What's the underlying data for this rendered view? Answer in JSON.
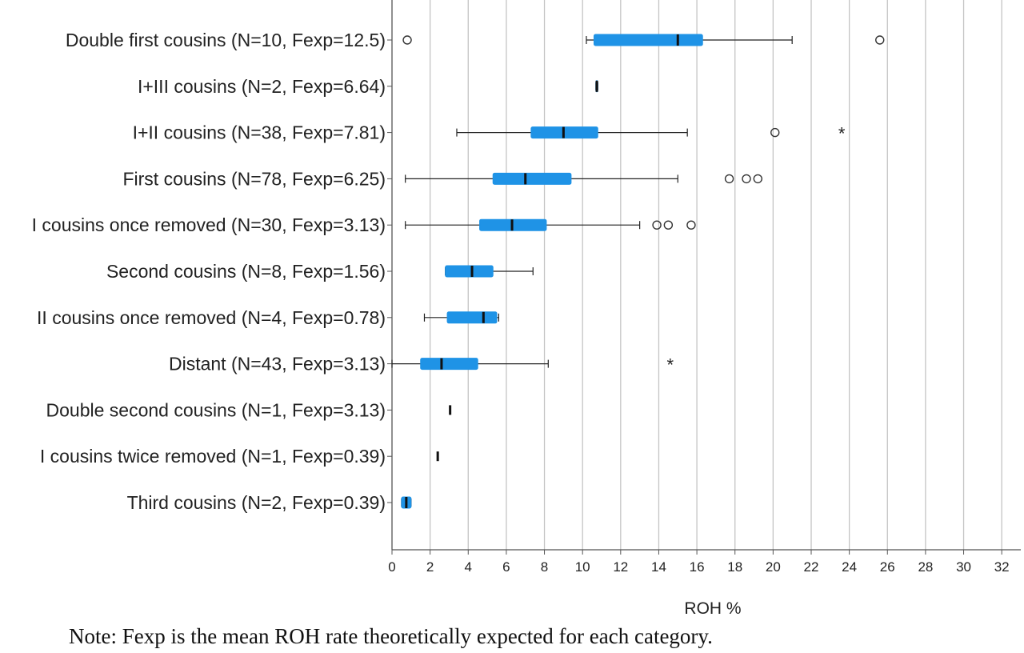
{
  "chart_data": {
    "type": "boxplot",
    "orientation": "horizontal",
    "xlabel": "ROH %",
    "xlim": [
      0,
      33
    ],
    "xticks": [
      0,
      2,
      4,
      6,
      8,
      10,
      12,
      14,
      16,
      18,
      20,
      22,
      24,
      26,
      28,
      30,
      32
    ],
    "grid": "vertical",
    "box_color": "#1f93e6",
    "categories": [
      {
        "label": "Double first cousins (N=10, Fexp=12.5)",
        "whisker_low": 10.2,
        "q1": 10.6,
        "median": 15.0,
        "q3": 16.3,
        "whisker_high": 21.0,
        "outliers": [
          0.8,
          25.6
        ],
        "extremes": []
      },
      {
        "label": "I+III cousins (N=2, Fexp=6.64)",
        "whisker_low": 10.7,
        "q1": 10.7,
        "median": 10.75,
        "q3": 10.8,
        "whisker_high": 10.8,
        "outliers": [],
        "extremes": []
      },
      {
        "label": "I+II cousins (N=38, Fexp=7.81)",
        "whisker_low": 3.4,
        "q1": 7.3,
        "median": 9.0,
        "q3": 10.8,
        "whisker_high": 15.5,
        "outliers": [
          20.1
        ],
        "extremes": [
          23.6
        ]
      },
      {
        "label": "First cousins (N=78, Fexp=6.25)",
        "whisker_low": 0.7,
        "q1": 5.3,
        "median": 7.0,
        "q3": 9.4,
        "whisker_high": 15.0,
        "outliers": [
          17.7,
          18.6,
          19.2
        ],
        "extremes": []
      },
      {
        "label": "I cousins once removed (N=30, Fexp=3.13)",
        "whisker_low": 0.7,
        "q1": 4.6,
        "median": 6.3,
        "q3": 8.1,
        "whisker_high": 13.0,
        "outliers": [
          13.9,
          14.5,
          15.7
        ],
        "extremes": []
      },
      {
        "label": "Second cousins (N=8, Fexp=1.56)",
        "whisker_low": 2.8,
        "q1": 2.8,
        "median": 4.2,
        "q3": 5.3,
        "whisker_high": 7.4,
        "outliers": [],
        "extremes": []
      },
      {
        "label": "II cousins once removed (N=4, Fexp=0.78)",
        "whisker_low": 1.7,
        "q1": 2.9,
        "median": 4.8,
        "q3": 5.5,
        "whisker_high": 5.6,
        "outliers": [],
        "extremes": []
      },
      {
        "label": "Distant (N=43, Fexp=3.13)",
        "whisker_low": 0.0,
        "q1": 1.5,
        "median": 2.6,
        "q3": 4.5,
        "whisker_high": 8.2,
        "outliers": [],
        "extremes": [
          14.6
        ]
      },
      {
        "label": "Double second cousins (N=1, Fexp=3.13)",
        "whisker_low": 3.05,
        "q1": 3.05,
        "median": 3.05,
        "q3": 3.05,
        "whisker_high": 3.05,
        "outliers": [],
        "extremes": []
      },
      {
        "label": "I cousins twice removed (N=1, Fexp=0.39)",
        "whisker_low": 2.4,
        "q1": 2.4,
        "median": 2.4,
        "q3": 2.4,
        "whisker_high": 2.4,
        "outliers": [],
        "extremes": []
      },
      {
        "label": "Third cousins (N=2, Fexp=0.39)",
        "whisker_low": 0.5,
        "q1": 0.5,
        "median": 0.75,
        "q3": 1.0,
        "whisker_high": 1.0,
        "outliers": [],
        "extremes": []
      }
    ]
  },
  "note": "Note: Fexp is the mean ROH rate theoretically expected for each category."
}
